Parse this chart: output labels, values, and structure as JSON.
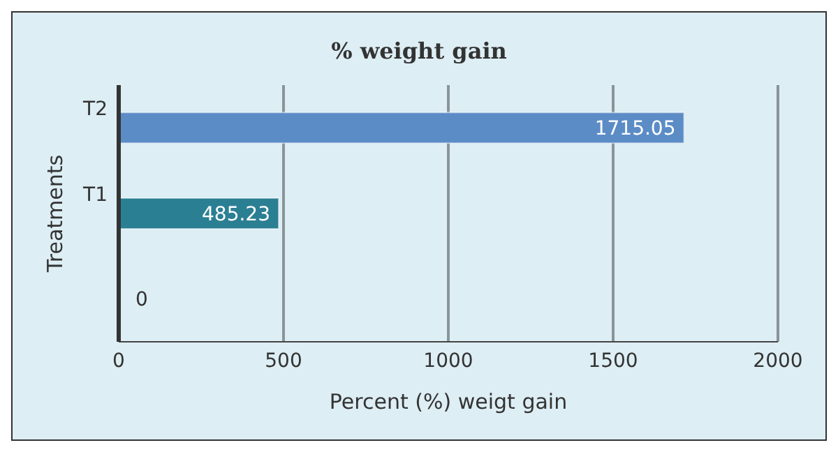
{
  "chart_data": {
    "type": "bar",
    "orientation": "horizontal",
    "title": "% weight gain",
    "xlabel": "Percent (%) weigt gain",
    "ylabel": "Treatments",
    "categories": [
      "T2",
      "T1",
      null
    ],
    "values": [
      1715.05,
      485.23,
      0
    ],
    "colors": [
      "#5b8cc6",
      "#2b7f93",
      "#2b7f93"
    ],
    "xlim": [
      0,
      2000
    ],
    "xticks": [
      0,
      500,
      1000,
      1500,
      2000
    ],
    "grid": "x",
    "data_labels": true
  }
}
